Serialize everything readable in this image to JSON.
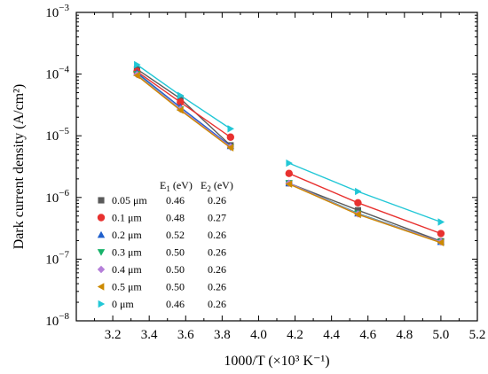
{
  "chart_data": {
    "type": "scatter",
    "title": "",
    "xlabel": "1000/T (×10³ K⁻¹)",
    "ylabel": "Dark current density (A/cm²)",
    "xlim": [
      3.0,
      5.2
    ],
    "ylim": [
      1e-08,
      0.001
    ],
    "y_scale": "log",
    "x_ticks": [
      "3.2",
      "3.4",
      "3.6",
      "3.8",
      "4.0",
      "4.2",
      "4.4",
      "4.6",
      "4.8",
      "5.0",
      "5.2"
    ],
    "y_ticks": [
      {
        "base": "10",
        "exp": "−8",
        "value": 1e-08
      },
      {
        "base": "10",
        "exp": "−7",
        "value": 1e-07
      },
      {
        "base": "10",
        "exp": "−6",
        "value": 1e-06
      },
      {
        "base": "10",
        "exp": "−5",
        "value": 1e-05
      },
      {
        "base": "10",
        "exp": "−4",
        "value": 0.0001
      },
      {
        "base": "10",
        "exp": "−3",
        "value": 0.001
      }
    ],
    "legend_header": {
      "e1": "E",
      "e1_sub": "1",
      "e1_unit": " (eV)",
      "e2": "E",
      "e2_sub": "2",
      "e2_unit": " (eV)"
    },
    "legend_placement": "bottom-left",
    "series": [
      {
        "name": "0.05 μm",
        "e1": "0.46",
        "e2": "0.26",
        "color": "#5a5a5a",
        "marker": "square",
        "low": [
          [
            3.333,
            0.00012
          ],
          [
            3.571,
            4e-05
          ],
          [
            3.846,
            7e-06
          ]
        ],
        "high": [
          [
            4.167,
            1.7e-06
          ],
          [
            4.545,
            6.2e-07
          ],
          [
            5.0,
            1.95e-07
          ]
        ]
      },
      {
        "name": "0.1 μm",
        "e1": "0.48",
        "e2": "0.27",
        "color": "#e8312f",
        "marker": "circle",
        "low": [
          [
            3.333,
            0.00011
          ],
          [
            3.571,
            3.5e-05
          ],
          [
            3.846,
            9.5e-06
          ]
        ],
        "high": [
          [
            4.167,
            2.45e-06
          ],
          [
            4.545,
            8.2e-07
          ],
          [
            5.0,
            2.6e-07
          ]
        ]
      },
      {
        "name": "0.2 μm",
        "e1": "0.52",
        "e2": "0.26",
        "color": "#1f5fcc",
        "marker": "triangle-up",
        "low": [
          [
            3.333,
            0.000105
          ],
          [
            3.571,
            2.9e-05
          ],
          [
            3.846,
            6.8e-06
          ]
        ],
        "high": [
          [
            4.167,
            1.7e-06
          ],
          [
            4.545,
            5.5e-07
          ],
          [
            5.0,
            1.9e-07
          ]
        ]
      },
      {
        "name": "0.3 μm",
        "e1": "0.50",
        "e2": "0.26",
        "color": "#17b26a",
        "marker": "triangle-down",
        "low": [
          [
            3.333,
            0.0001
          ],
          [
            3.571,
            2.7e-05
          ],
          [
            3.846,
            6.5e-06
          ]
        ],
        "high": [
          [
            4.167,
            1.7e-06
          ],
          [
            4.545,
            5.5e-07
          ],
          [
            5.0,
            1.9e-07
          ]
        ]
      },
      {
        "name": "0.4 μm",
        "e1": "0.50",
        "e2": "0.26",
        "color": "#b57fd9",
        "marker": "diamond",
        "low": [
          [
            3.333,
            9.8e-05
          ],
          [
            3.571,
            2.7e-05
          ],
          [
            3.846,
            6.6e-06
          ]
        ],
        "high": [
          [
            4.167,
            1.7e-06
          ],
          [
            4.545,
            5.4e-07
          ],
          [
            5.0,
            1.9e-07
          ]
        ]
      },
      {
        "name": "0.5 μm",
        "e1": "0.50",
        "e2": "0.26",
        "color": "#cc8a00",
        "marker": "triangle-left",
        "low": [
          [
            3.333,
            9.5e-05
          ],
          [
            3.571,
            2.6e-05
          ],
          [
            3.846,
            6.4e-06
          ]
        ],
        "high": [
          [
            4.167,
            1.65e-06
          ],
          [
            4.545,
            5.3e-07
          ],
          [
            5.0,
            1.85e-07
          ]
        ]
      },
      {
        "name": "0 μm",
        "e1": "0.46",
        "e2": "0.26",
        "color": "#22c7d6",
        "marker": "triangle-right",
        "low": [
          [
            3.333,
            0.000142
          ],
          [
            3.571,
            4.5e-05
          ],
          [
            3.846,
            1.3e-05
          ]
        ],
        "high": [
          [
            4.167,
            3.6e-06
          ],
          [
            4.545,
            1.25e-06
          ],
          [
            5.0,
            4e-07
          ]
        ]
      }
    ]
  }
}
